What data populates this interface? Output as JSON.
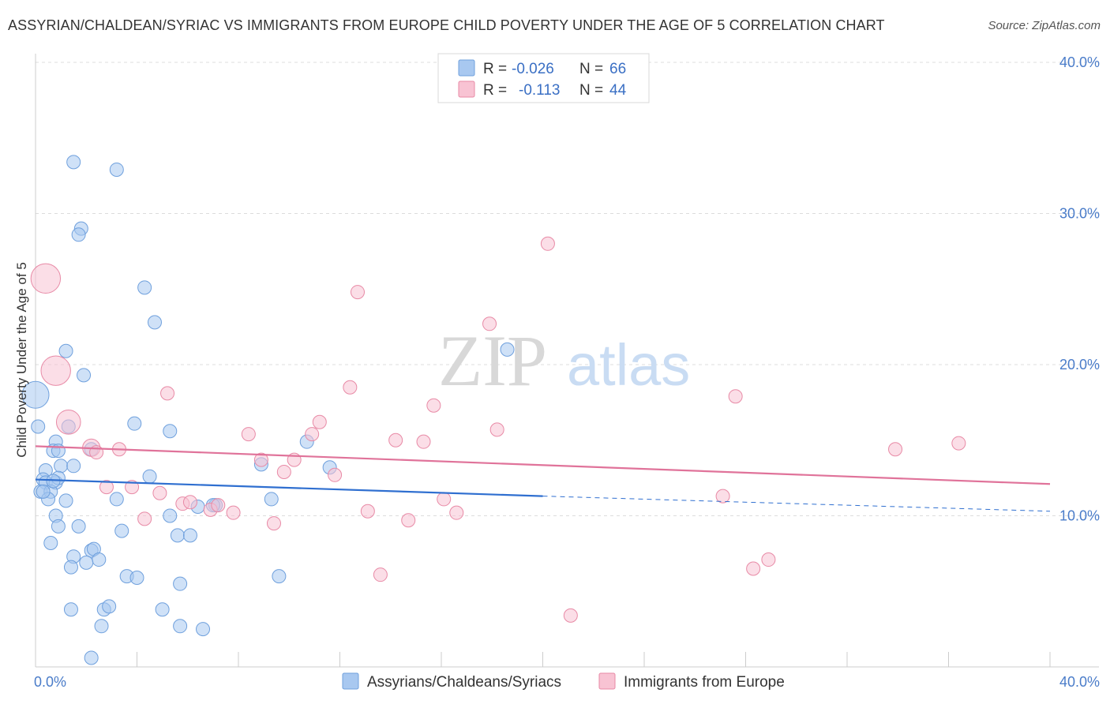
{
  "title": "ASSYRIAN/CHALDEAN/SYRIAC VS IMMIGRANTS FROM EUROPE CHILD POVERTY UNDER THE AGE OF 5 CORRELATION CHART",
  "source": "Source: ZipAtlas.com",
  "watermark": {
    "zip": "ZIP",
    "atlas": "atlas"
  },
  "legend": {
    "rows": [
      {
        "r_label": "R =",
        "r_value": "-0.026",
        "n_label": "N =",
        "n_value": "66",
        "color": "#a8c8f0",
        "stroke": "#6fa0dd"
      },
      {
        "r_label": "R =",
        "r_value": "-0.113",
        "n_label": "N =",
        "n_value": "44",
        "color": "#f8c3d3",
        "stroke": "#e88aa6"
      }
    ]
  },
  "bottom_legend": [
    {
      "label": "Assyrians/Chaldeans/Syriacs",
      "color": "#a8c8f0",
      "stroke": "#6fa0dd"
    },
    {
      "label": "Immigrants from Europe",
      "color": "#f8c3d3",
      "stroke": "#e88aa6"
    }
  ],
  "chart_data": {
    "type": "scatter",
    "title": "ASSYRIAN/CHALDEAN/SYRIAC VS IMMIGRANTS FROM EUROPE CHILD POVERTY UNDER THE AGE OF 5 CORRELATION CHART",
    "xlabel": "",
    "ylabel": "Child Poverty Under the Age of 5",
    "xlim": [
      0,
      40
    ],
    "ylim": [
      0,
      40
    ],
    "x_tick_labels": [
      "0.0%",
      "40.0%"
    ],
    "y_tick_labels": [
      "10.0%",
      "20.0%",
      "30.0%",
      "40.0%"
    ],
    "y_ticks": [
      10,
      20,
      30,
      40
    ],
    "grid": true,
    "series": [
      {
        "name": "Assyrians/Chaldeans/Syriacs",
        "color": "#a8c8f0",
        "stroke": "#6fa0dd",
        "trend": {
          "x0": 0,
          "y0": 12.4,
          "x1": 20,
          "y1": 11.3,
          "dash_x1": 40,
          "dash_y1": 10.3,
          "color": "#2f6fd0"
        },
        "points": [
          {
            "x": 1.5,
            "y": 33.4,
            "s": 1
          },
          {
            "x": 3.2,
            "y": 32.9,
            "s": 1
          },
          {
            "x": 1.8,
            "y": 29.0,
            "s": 1
          },
          {
            "x": 1.7,
            "y": 28.6,
            "s": 1
          },
          {
            "x": 4.3,
            "y": 25.1,
            "s": 1
          },
          {
            "x": 4.7,
            "y": 22.8,
            "s": 1
          },
          {
            "x": 1.2,
            "y": 20.9,
            "s": 1
          },
          {
            "x": 18.6,
            "y": 21.0,
            "s": 1
          },
          {
            "x": 1.9,
            "y": 19.3,
            "s": 1
          },
          {
            "x": 0.0,
            "y": 18.0,
            "s": 2
          },
          {
            "x": 0.1,
            "y": 15.9,
            "s": 1
          },
          {
            "x": 1.3,
            "y": 15.9,
            "s": 1
          },
          {
            "x": 3.9,
            "y": 16.1,
            "s": 1
          },
          {
            "x": 5.3,
            "y": 15.6,
            "s": 1
          },
          {
            "x": 0.8,
            "y": 14.9,
            "s": 1
          },
          {
            "x": 0.7,
            "y": 14.3,
            "s": 1
          },
          {
            "x": 0.9,
            "y": 14.3,
            "s": 1
          },
          {
            "x": 2.2,
            "y": 14.4,
            "s": 1
          },
          {
            "x": 10.7,
            "y": 14.9,
            "s": 1
          },
          {
            "x": 1.0,
            "y": 13.3,
            "s": 1
          },
          {
            "x": 1.5,
            "y": 13.3,
            "s": 1
          },
          {
            "x": 8.9,
            "y": 13.4,
            "s": 1
          },
          {
            "x": 11.6,
            "y": 13.2,
            "s": 1
          },
          {
            "x": 0.4,
            "y": 13.0,
            "s": 1
          },
          {
            "x": 0.3,
            "y": 12.4,
            "s": 1
          },
          {
            "x": 0.4,
            "y": 12.2,
            "s": 1
          },
          {
            "x": 0.8,
            "y": 12.2,
            "s": 1
          },
          {
            "x": 0.9,
            "y": 12.5,
            "s": 1
          },
          {
            "x": 4.5,
            "y": 12.6,
            "s": 1
          },
          {
            "x": 0.2,
            "y": 11.6,
            "s": 1
          },
          {
            "x": 0.6,
            "y": 11.6,
            "s": 1
          },
          {
            "x": 0.5,
            "y": 11.1,
            "s": 1
          },
          {
            "x": 1.2,
            "y": 11.0,
            "s": 1
          },
          {
            "x": 3.2,
            "y": 11.1,
            "s": 1
          },
          {
            "x": 6.4,
            "y": 10.6,
            "s": 1
          },
          {
            "x": 7.1,
            "y": 10.7,
            "s": 1
          },
          {
            "x": 7.0,
            "y": 10.7,
            "s": 1
          },
          {
            "x": 9.3,
            "y": 11.1,
            "s": 1
          },
          {
            "x": 5.3,
            "y": 10.0,
            "s": 1
          },
          {
            "x": 0.8,
            "y": 10.0,
            "s": 1
          },
          {
            "x": 0.9,
            "y": 9.3,
            "s": 1
          },
          {
            "x": 1.7,
            "y": 9.3,
            "s": 1
          },
          {
            "x": 3.4,
            "y": 9.0,
            "s": 1
          },
          {
            "x": 5.6,
            "y": 8.7,
            "s": 1
          },
          {
            "x": 6.1,
            "y": 8.7,
            "s": 1
          },
          {
            "x": 0.6,
            "y": 8.2,
            "s": 1
          },
          {
            "x": 2.2,
            "y": 7.7,
            "s": 1
          },
          {
            "x": 2.3,
            "y": 7.8,
            "s": 1
          },
          {
            "x": 1.5,
            "y": 7.3,
            "s": 1
          },
          {
            "x": 2.5,
            "y": 7.1,
            "s": 1
          },
          {
            "x": 2.0,
            "y": 6.9,
            "s": 1
          },
          {
            "x": 1.4,
            "y": 6.6,
            "s": 1
          },
          {
            "x": 3.6,
            "y": 6.0,
            "s": 1
          },
          {
            "x": 4.0,
            "y": 5.9,
            "s": 1
          },
          {
            "x": 9.6,
            "y": 6.0,
            "s": 1
          },
          {
            "x": 5.7,
            "y": 5.5,
            "s": 1
          },
          {
            "x": 1.4,
            "y": 3.8,
            "s": 1
          },
          {
            "x": 2.7,
            "y": 3.8,
            "s": 1
          },
          {
            "x": 2.9,
            "y": 4.0,
            "s": 1
          },
          {
            "x": 5.0,
            "y": 3.8,
            "s": 1
          },
          {
            "x": 2.6,
            "y": 2.7,
            "s": 1
          },
          {
            "x": 5.7,
            "y": 2.7,
            "s": 1
          },
          {
            "x": 6.6,
            "y": 2.5,
            "s": 1
          },
          {
            "x": 2.2,
            "y": 0.6,
            "s": 1
          },
          {
            "x": 0.3,
            "y": 11.6,
            "s": 1
          },
          {
            "x": 0.7,
            "y": 12.3,
            "s": 1
          }
        ]
      },
      {
        "name": "Immigrants from Europe",
        "color": "#f8c3d3",
        "stroke": "#e88aa6",
        "trend": {
          "x0": 0,
          "y0": 14.6,
          "x1": 40,
          "y1": 12.1,
          "color": "#e0739a"
        },
        "points": [
          {
            "x": 20.2,
            "y": 28.0,
            "s": 1
          },
          {
            "x": 0.4,
            "y": 25.7,
            "s": 2.2
          },
          {
            "x": 12.7,
            "y": 24.8,
            "s": 1
          },
          {
            "x": 17.9,
            "y": 22.7,
            "s": 1
          },
          {
            "x": 0.8,
            "y": 19.6,
            "s": 2.2
          },
          {
            "x": 12.4,
            "y": 18.5,
            "s": 1
          },
          {
            "x": 5.2,
            "y": 18.1,
            "s": 1
          },
          {
            "x": 27.6,
            "y": 17.9,
            "s": 1
          },
          {
            "x": 15.7,
            "y": 17.3,
            "s": 1
          },
          {
            "x": 1.3,
            "y": 16.2,
            "s": 1.8
          },
          {
            "x": 11.2,
            "y": 16.2,
            "s": 1
          },
          {
            "x": 18.2,
            "y": 15.7,
            "s": 1
          },
          {
            "x": 8.4,
            "y": 15.4,
            "s": 1
          },
          {
            "x": 10.9,
            "y": 15.4,
            "s": 1
          },
          {
            "x": 14.2,
            "y": 15.0,
            "s": 1
          },
          {
            "x": 15.3,
            "y": 14.9,
            "s": 1
          },
          {
            "x": 2.2,
            "y": 14.5,
            "s": 1.3
          },
          {
            "x": 3.3,
            "y": 14.4,
            "s": 1
          },
          {
            "x": 2.4,
            "y": 14.2,
            "s": 1
          },
          {
            "x": 33.9,
            "y": 14.4,
            "s": 1
          },
          {
            "x": 36.4,
            "y": 14.8,
            "s": 1
          },
          {
            "x": 8.9,
            "y": 13.7,
            "s": 1
          },
          {
            "x": 10.2,
            "y": 13.7,
            "s": 1
          },
          {
            "x": 9.8,
            "y": 12.9,
            "s": 1
          },
          {
            "x": 11.8,
            "y": 12.7,
            "s": 1
          },
          {
            "x": 2.8,
            "y": 11.9,
            "s": 1
          },
          {
            "x": 3.8,
            "y": 11.9,
            "s": 1
          },
          {
            "x": 4.9,
            "y": 11.5,
            "s": 1
          },
          {
            "x": 27.1,
            "y": 11.3,
            "s": 1
          },
          {
            "x": 16.1,
            "y": 11.1,
            "s": 1
          },
          {
            "x": 5.8,
            "y": 10.8,
            "s": 1
          },
          {
            "x": 6.9,
            "y": 10.4,
            "s": 1
          },
          {
            "x": 7.2,
            "y": 10.7,
            "s": 1
          },
          {
            "x": 7.8,
            "y": 10.2,
            "s": 1
          },
          {
            "x": 13.1,
            "y": 10.3,
            "s": 1
          },
          {
            "x": 16.6,
            "y": 10.2,
            "s": 1
          },
          {
            "x": 4.3,
            "y": 9.8,
            "s": 1
          },
          {
            "x": 14.7,
            "y": 9.7,
            "s": 1
          },
          {
            "x": 9.4,
            "y": 9.5,
            "s": 1
          },
          {
            "x": 28.3,
            "y": 6.5,
            "s": 1
          },
          {
            "x": 28.9,
            "y": 7.1,
            "s": 1
          },
          {
            "x": 13.6,
            "y": 6.1,
            "s": 1
          },
          {
            "x": 21.1,
            "y": 3.4,
            "s": 1
          },
          {
            "x": 6.1,
            "y": 10.9,
            "s": 1
          }
        ]
      }
    ]
  }
}
